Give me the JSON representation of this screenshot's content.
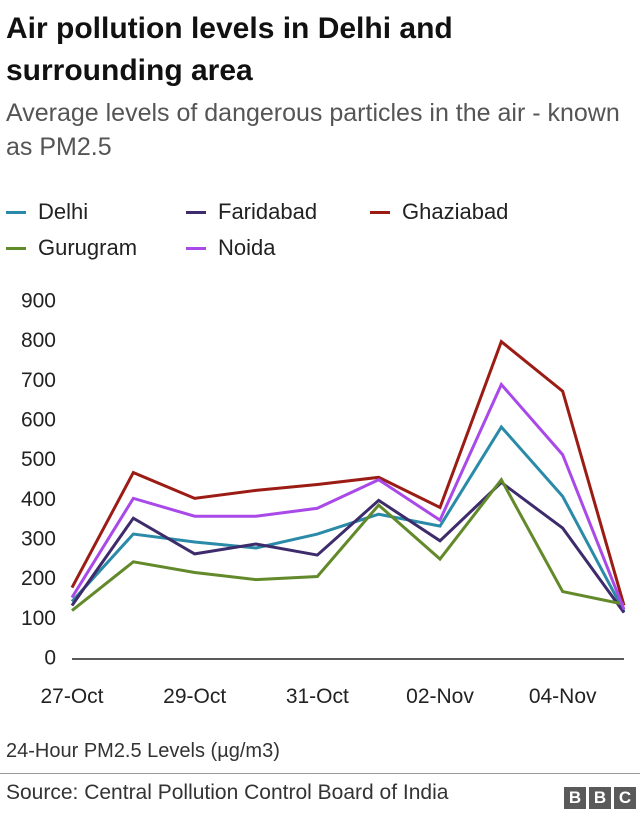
{
  "chart_data": {
    "type": "line",
    "title": "Air pollution levels in Delhi and surrounding area",
    "subtitle": "Average levels of dangerous particles in the air - known as PM2.5",
    "categories": [
      "27-Oct",
      "28-Oct",
      "29-Oct",
      "30-Oct",
      "31-Oct",
      "01-Nov",
      "02-Nov",
      "03-Nov",
      "04-Nov",
      "05-Nov"
    ],
    "x_tick_labels": [
      "27-Oct",
      "29-Oct",
      "31-Oct",
      "02-Nov",
      "04-Nov"
    ],
    "y_ticks": [
      0,
      100,
      200,
      300,
      400,
      500,
      600,
      700,
      800,
      900
    ],
    "ylim": [
      0,
      900
    ],
    "xlabel": "",
    "ylabel": "",
    "legend_position": "top",
    "grid": false,
    "series": [
      {
        "name": "Delhi",
        "color": "#2a8aa8",
        "values": [
          145,
          315,
          295,
          280,
          315,
          365,
          335,
          585,
          410,
          120
        ]
      },
      {
        "name": "Faridabad",
        "color": "#3d2b6b",
        "values": [
          135,
          355,
          265,
          290,
          262,
          400,
          298,
          445,
          330,
          117
        ]
      },
      {
        "name": "Ghaziabad",
        "color": "#9b1c14",
        "values": [
          180,
          470,
          405,
          425,
          440,
          458,
          382,
          800,
          675,
          135
        ]
      },
      {
        "name": "Gurugram",
        "color": "#62892a",
        "values": [
          122,
          245,
          218,
          200,
          208,
          388,
          252,
          452,
          170,
          138
        ]
      },
      {
        "name": "Noida",
        "color": "#a94ae8",
        "values": [
          155,
          405,
          360,
          360,
          380,
          452,
          350,
          692,
          515,
          125
        ]
      }
    ]
  },
  "footnote": "24-Hour PM2.5 Levels (µg/m3)",
  "source": "Source: Central Pollution Control Board of India",
  "logo": [
    "B",
    "B",
    "C"
  ]
}
